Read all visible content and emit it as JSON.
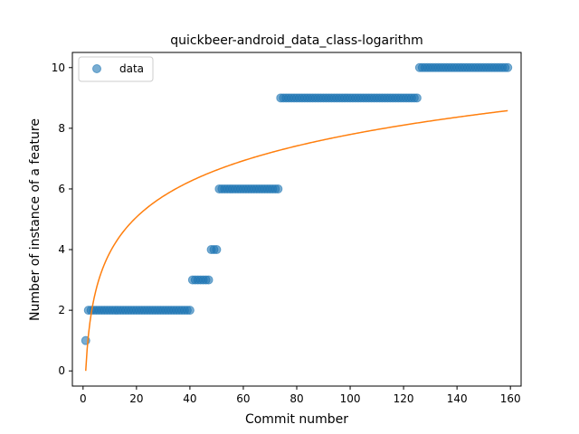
{
  "chart_data": {
    "type": "scatter",
    "title": "quickbeer-android_data_class-logarithm",
    "xlabel": "Commit number",
    "ylabel": "Number of instance of a feature",
    "xlim": [
      -4,
      164
    ],
    "ylim": [
      -0.5,
      10.5
    ],
    "xticks": [
      0,
      20,
      40,
      60,
      80,
      100,
      120,
      140,
      160
    ],
    "yticks": [
      0,
      2,
      4,
      6,
      8,
      10
    ],
    "grid": false,
    "legend": {
      "position": "top-left",
      "entries": [
        "data"
      ]
    },
    "series": [
      {
        "name": "data",
        "kind": "scatter",
        "color": "#1f77b4",
        "segments": [
          {
            "x_from": 1,
            "x_to": 1,
            "y": 1
          },
          {
            "x_from": 2,
            "x_to": 40,
            "y": 2
          },
          {
            "x_from": 41,
            "x_to": 47,
            "y": 3
          },
          {
            "x_from": 48,
            "x_to": 50,
            "y": 4
          },
          {
            "x_from": 51,
            "x_to": 73,
            "y": 6
          },
          {
            "x_from": 74,
            "x_to": 125,
            "y": 9
          },
          {
            "x_from": 126,
            "x_to": 159,
            "y": 10
          }
        ]
      },
      {
        "kind": "line",
        "color": "#ff7f0e",
        "fit": "logarithmic",
        "x_range": [
          1,
          159
        ],
        "points": [
          [
            1,
            0.0
          ],
          [
            2,
            1.17
          ],
          [
            3,
            1.86
          ],
          [
            5,
            2.73
          ],
          [
            10,
            3.9
          ],
          [
            20,
            5.07
          ],
          [
            30,
            5.76
          ],
          [
            40,
            6.24
          ],
          [
            60,
            6.93
          ],
          [
            80,
            7.41
          ],
          [
            100,
            7.79
          ],
          [
            120,
            8.1
          ],
          [
            140,
            8.36
          ],
          [
            159,
            8.58
          ]
        ]
      }
    ]
  }
}
